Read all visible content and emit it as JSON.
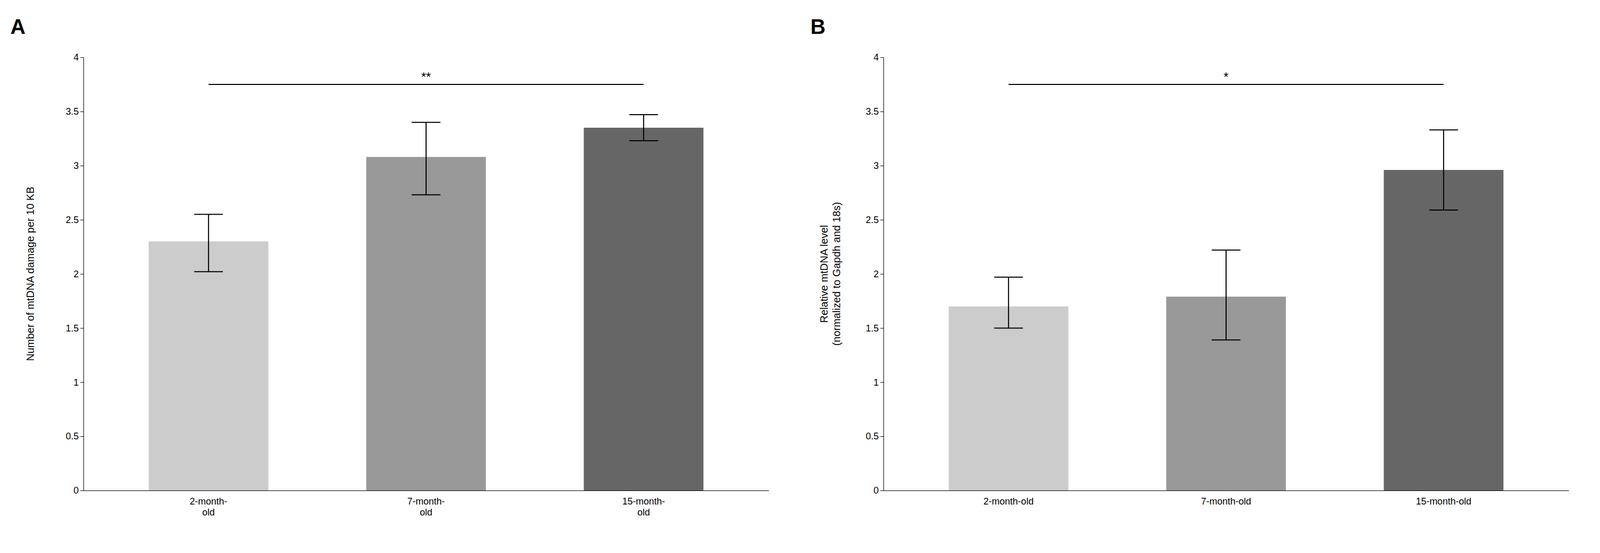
{
  "chart_data": [
    {
      "type": "bar",
      "title": "A",
      "categories": [
        "2-month-\nold",
        "7-month-\nold",
        "15-month-\nold"
      ],
      "values": [
        2.3,
        3.08,
        3.35
      ],
      "errors_upper": [
        0.25,
        0.32,
        0.12
      ],
      "errors_lower": [
        0.28,
        0.35,
        0.12
      ],
      "colors": [
        "#cccccc",
        "#999999",
        "#666666"
      ],
      "ylabel": "Number of mtDNA damage per 10 KB",
      "ylim": [
        0,
        4
      ],
      "yticks": [
        0,
        0.5,
        1,
        1.5,
        2,
        2.5,
        3,
        3.5,
        4
      ],
      "grid": false,
      "annotations": [
        {
          "text": "**",
          "x_from": "2-month-\nold",
          "x_to": "15-month-\nold",
          "y": 3.75
        }
      ]
    },
    {
      "type": "bar",
      "title": "B",
      "categories": [
        "2-month-old",
        "7-month-old",
        "15-month-old"
      ],
      "values": [
        1.7,
        1.79,
        2.96
      ],
      "errors_upper": [
        0.27,
        0.43,
        0.37
      ],
      "errors_lower": [
        0.2,
        0.4,
        0.37
      ],
      "colors": [
        "#cccccc",
        "#999999",
        "#666666"
      ],
      "ylabel": "Relative mtDNA level\n(normalized to Gapdh and 18s)",
      "ylim": [
        0,
        4
      ],
      "yticks": [
        0,
        0.5,
        1,
        1.5,
        2,
        2.5,
        3,
        3.5,
        4
      ],
      "grid": false,
      "annotations": [
        {
          "text": "*",
          "x_from": "2-month-old",
          "x_to": "15-month-old",
          "y": 3.75
        }
      ]
    }
  ]
}
